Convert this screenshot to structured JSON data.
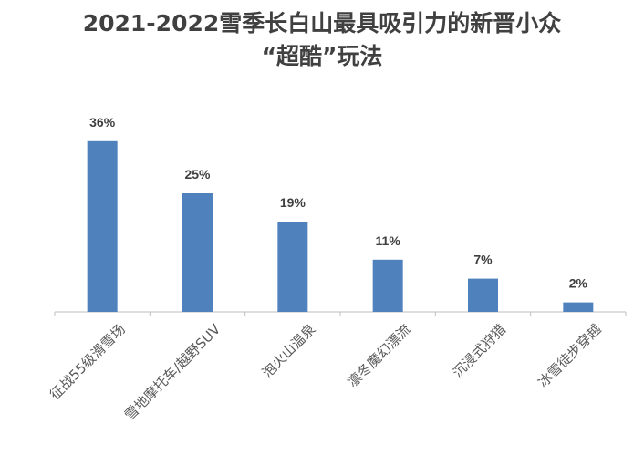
{
  "chart_data": {
    "type": "bar",
    "title_lines": [
      "2021-2022雪季长白山最具吸引力的新晋小众",
      "“超酷”玩法"
    ],
    "categories": [
      "征战55级滑雪场",
      "雪地摩托车/越野SUV",
      "泡火山温泉",
      "凛冬魔幻漂流",
      "沉浸式狩猎",
      "冰雪徒步穿越"
    ],
    "values": [
      36,
      25,
      19,
      11,
      7,
      2
    ],
    "data_labels": [
      "36%",
      "25%",
      "19%",
      "11%",
      "7%",
      "2%"
    ],
    "unit": "%",
    "ylim": [
      0,
      40
    ],
    "grid": false,
    "legend": "none",
    "bar_color": "#4F81BD",
    "axis_color": "#BFBFBF",
    "label_color": "#595959",
    "value_label_color": "#404040"
  }
}
